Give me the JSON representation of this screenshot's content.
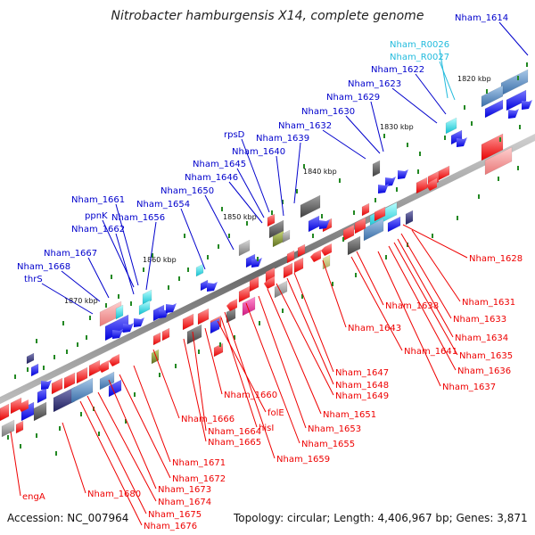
{
  "title": "Nitrobacter hamburgensis X14, complete genome",
  "accession": "Accession: NC_007964",
  "topology": "Topology: circular; Length: 4,406,967 bp; Genes: 3,871",
  "colors": {
    "top_label": "#0000cc",
    "bottom_label": "#ee0000",
    "rna_label": "#22bbdd",
    "backbone": "#888888",
    "marker": "#228822"
  },
  "kbp_ticks": [
    "1820 kbp",
    "1830 kbp",
    "1840 kbp",
    "1850 kbp",
    "1860 kbp",
    "1870 kbp"
  ],
  "top_labels": [
    "Nham_1614",
    "Nham_R0026",
    "Nham_R0027",
    "Nham_1622",
    "Nham_1623",
    "Nham_1629",
    "Nham_1630",
    "Nham_1632",
    "rpsD",
    "Nham_1639",
    "Nham_1640",
    "Nham_1645",
    "Nham_1646",
    "Nham_1650",
    "Nham_1654",
    "Nham_1661",
    "Nham_1656",
    "ppnK",
    "Nham_1662",
    "Nham_1667",
    "Nham_1668",
    "thrS"
  ],
  "bottom_labels": [
    "Nham_1628",
    "Nham_1631",
    "Nham_1633",
    "Nham_1634",
    "Nham_1635",
    "Nham_1636",
    "Nham_1637",
    "Nham_1638",
    "Nham_1641",
    "Nham_1643",
    "Nham_1647",
    "Nham_1648",
    "Nham_1649",
    "Nham_1651",
    "Nham_1653",
    "Nham_1655",
    "Nham_1659",
    "hisI",
    "folE",
    "Nham_1660",
    "Nham_1664",
    "Nham_1665",
    "Nham_1666",
    "Nham_1671",
    "Nham_1672",
    "Nham_1673",
    "Nham_1674",
    "Nham_1675",
    "Nham_1676",
    "Nham_1680",
    "engA"
  ]
}
